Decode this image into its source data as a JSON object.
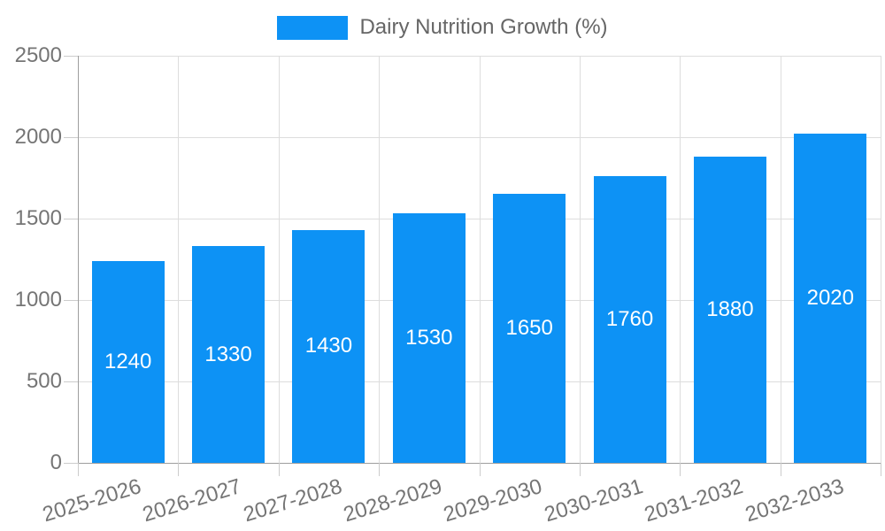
{
  "chart_data": {
    "type": "bar",
    "series_label": "Dairy Nutrition Growth (%)",
    "categories": [
      "2025-2026",
      "2026-2027",
      "2027-2028",
      "2028-2029",
      "2029-2030",
      "2030-2031",
      "2031-2032",
      "2032-2033"
    ],
    "values": [
      1240,
      1330,
      1430,
      1530,
      1650,
      1760,
      1880,
      2020
    ],
    "bar_labels": [
      "1240",
      "1330",
      "1430",
      "1530",
      "1650",
      "1760",
      "1880",
      "2020"
    ],
    "ylim": [
      0,
      2500
    ],
    "yticks": [
      0,
      500,
      1000,
      1500,
      2000,
      2500
    ],
    "grid": true,
    "legend_position": "top",
    "x_label_rotation_deg": -17,
    "colors": {
      "bar": "#0D92F5",
      "bar_label": "#FFFFFF",
      "grid": "#DDDDDD",
      "tick": "#CCCCCC",
      "axis_line": "#9E9E9E",
      "axis_text": "#757575",
      "legend_text": "#666666",
      "background": "#FFFFFF"
    }
  }
}
